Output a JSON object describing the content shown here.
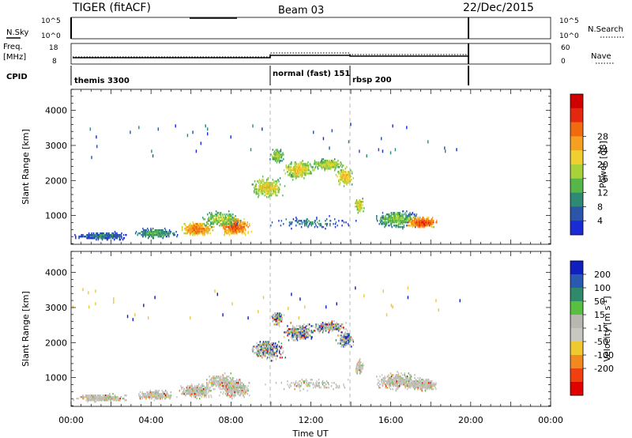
{
  "header": {
    "station": "TIGER (fitACF)",
    "beam": "Beam 03",
    "date": "22/Dec/2015"
  },
  "nsky_panel": {
    "left_label": "N.Sky",
    "left_ticks": [
      "10^5",
      "10^0"
    ],
    "right_ticks": [
      "10^5",
      "10^0"
    ],
    "right_label": "N.Search"
  },
  "freq_panel": {
    "left_label_line1": "Freq.",
    "left_label_line2": "[MHz]",
    "left_ticks": [
      "18",
      "8"
    ],
    "right_ticks": [
      "60",
      "0"
    ],
    "right_label": "Nave"
  },
  "cpid_panel": {
    "label": "CPID",
    "modes": [
      {
        "name": "themis 3300",
        "start_hour": 0
      },
      {
        "name": "normal (fast) 151",
        "start_hour": 10
      },
      {
        "name": "rbsp 200",
        "start_hour": 14
      }
    ]
  },
  "time_axis": {
    "label": "Time UT",
    "ticks": [
      "00:00",
      "04:00",
      "08:00",
      "12:00",
      "16:00",
      "20:00",
      "00:00"
    ]
  },
  "chart_data": [
    {
      "type": "heatmap",
      "panel": "power",
      "ylabel": "Slant Range [km]",
      "y_ticks": [
        1000,
        2000,
        3000,
        4000
      ],
      "ylim": [
        180,
        4600
      ],
      "xlim_hours": [
        0,
        24
      ],
      "colorbar": {
        "label": "Power [dB]",
        "ticks": [
          "4",
          "8",
          "12",
          "16",
          "20",
          "24",
          "28"
        ],
        "colors": [
          "#1a2bd6",
          "#2a55a8",
          "#2f8a74",
          "#56b64a",
          "#a8d23a",
          "#f0d030",
          "#f5a020",
          "#f06a10",
          "#e42810",
          "#d00000"
        ]
      }
    },
    {
      "type": "heatmap",
      "panel": "velocity",
      "ylabel": "Slant Range [km]",
      "y_ticks": [
        1000,
        2000,
        3000,
        4000
      ],
      "ylim": [
        180,
        4600
      ],
      "xlim_hours": [
        0,
        24
      ],
      "colorbar": {
        "label": "Velocity [m s^-1]",
        "ticks": [
          "200",
          "100",
          "50",
          "15",
          "-15",
          "-50",
          "-100",
          "-200"
        ],
        "colors": [
          "#1020c0",
          "#2a5ab0",
          "#2e8a6a",
          "#58c040",
          "#b8b8b0",
          "#c8c8c0",
          "#f0c830",
          "#f08a20",
          "#f04010",
          "#e00000"
        ]
      }
    }
  ]
}
